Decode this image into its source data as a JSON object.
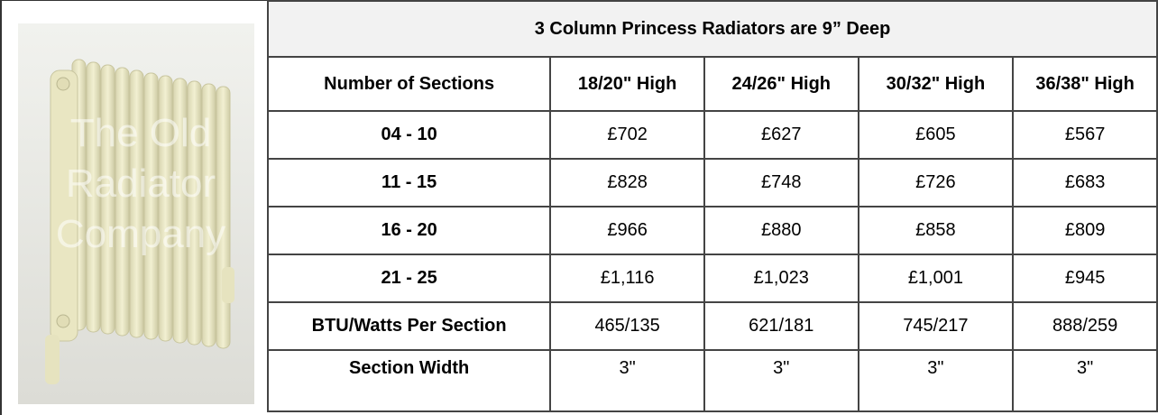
{
  "image": {
    "watermark": [
      "The Old",
      "Radiator",
      "Company"
    ]
  },
  "table": {
    "title": "3 Column Princess Radiators are 9” Deep",
    "header": [
      "Number of Sections",
      "18/20\" High",
      "24/26\" High",
      "30/32\" High",
      "36/38\" High"
    ],
    "rows": [
      [
        "04 - 10",
        "£702",
        "£627",
        "£605",
        "£567"
      ],
      [
        "11 - 15",
        "£828",
        "£748",
        "£726",
        "£683"
      ],
      [
        "16 - 20",
        "£966",
        "£880",
        "£858",
        "£809"
      ],
      [
        "21 - 25",
        "£1,116",
        "£1,023",
        "£1,001",
        "£945"
      ],
      [
        "BTU/Watts Per Section",
        "465/135",
        "621/181",
        "745/217",
        "888/259"
      ],
      [
        "Section Width",
        "3\"",
        "3\"",
        "3\"",
        "3\""
      ]
    ]
  }
}
